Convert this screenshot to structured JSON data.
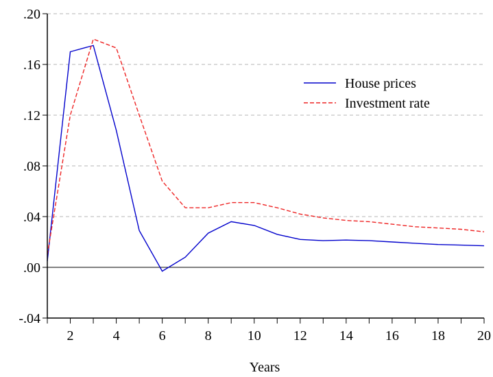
{
  "chart_data": {
    "type": "line",
    "title": "",
    "xlabel": "Years",
    "ylabel": "",
    "xlim": [
      1,
      20
    ],
    "ylim": [
      -0.04,
      0.2
    ],
    "x": [
      1,
      2,
      3,
      4,
      5,
      6,
      7,
      8,
      9,
      10,
      11,
      12,
      13,
      14,
      15,
      16,
      17,
      18,
      19,
      20
    ],
    "x_ticks": [
      2,
      4,
      6,
      8,
      10,
      12,
      14,
      16,
      18,
      20
    ],
    "x_tick_labels": [
      "2",
      "4",
      "6",
      "8",
      "10",
      "12",
      "14",
      "16",
      "18",
      "20"
    ],
    "y_ticks": [
      -0.04,
      0.0,
      0.04,
      0.08,
      0.12,
      0.16,
      0.2
    ],
    "y_tick_labels": [
      "-.04",
      ".00",
      ".04",
      ".08",
      ".12",
      ".16",
      ".20"
    ],
    "grid": "horizontal dashed",
    "zero_line": true,
    "legend_position": "top-right",
    "series": [
      {
        "name": "House prices",
        "color": "#0000cc",
        "style": "solid",
        "values": [
          0.005,
          0.17,
          0.175,
          0.108,
          0.029,
          -0.003,
          0.008,
          0.027,
          0.036,
          0.033,
          0.026,
          0.022,
          0.021,
          0.0215,
          0.021,
          0.02,
          0.019,
          0.018,
          0.0175,
          0.017
        ]
      },
      {
        "name": "Investment rate",
        "color": "#ee2222",
        "style": "dashed",
        "values": [
          0.01,
          0.12,
          0.18,
          0.173,
          0.12,
          0.068,
          0.047,
          0.047,
          0.051,
          0.051,
          0.047,
          0.042,
          0.039,
          0.037,
          0.036,
          0.034,
          0.032,
          0.031,
          0.03,
          0.028
        ]
      }
    ]
  }
}
